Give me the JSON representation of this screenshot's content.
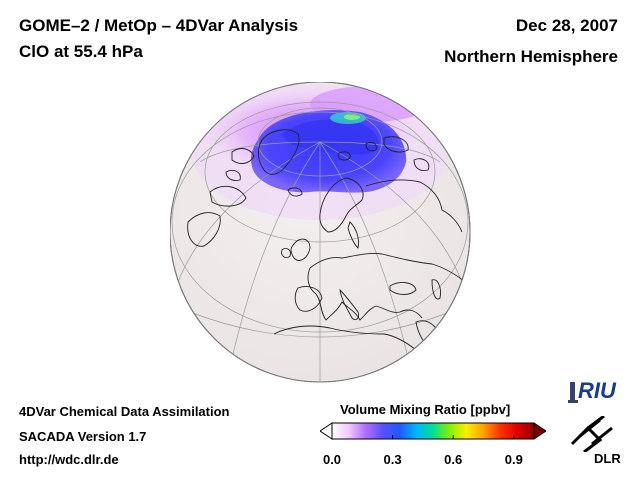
{
  "header": {
    "title": "GOME–2 / MetOp – 4DVar Analysis",
    "species": "ClO at 55.4 hPa",
    "date": "Dec 28, 2007",
    "region": "Northern Hemisphere"
  },
  "footer": {
    "line1": "4DVar Chemical Data Assimilation",
    "line2": "SACADA Version 1.7",
    "line3": "http://wdc.dlr.de"
  },
  "colorbar": {
    "title": "Volume Mixing Ratio [ppbv]",
    "ticks": [
      "0.0",
      "0.3",
      "0.6",
      "0.9"
    ],
    "range": [
      0.0,
      1.0
    ],
    "colors": [
      "#ffffff",
      "#f0c8ff",
      "#b070ff",
      "#5a50ff",
      "#1e5aff",
      "#00b4ff",
      "#00e090",
      "#8aee00",
      "#ffee00",
      "#ffa000",
      "#ff3000",
      "#e00000",
      "#900000"
    ]
  },
  "logos": {
    "riu": "RIU",
    "dlr": "DLR"
  },
  "map": {
    "projection": "orthographic",
    "hemisphere": "Northern Hemisphere",
    "icons": [
      "globe-map",
      "clo-vortex-field",
      "coastlines",
      "graticule"
    ]
  }
}
